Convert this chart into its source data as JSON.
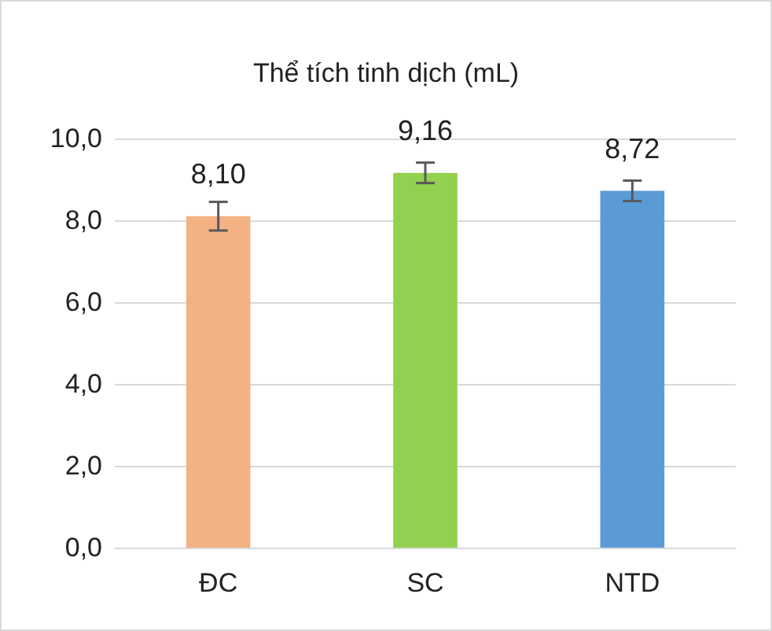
{
  "chart_data": {
    "type": "bar",
    "title": "Thể tích tinh dịch (mL)",
    "categories": [
      "ĐC",
      "SC",
      "NTD"
    ],
    "values": [
      8.1,
      9.16,
      8.72
    ],
    "colors": [
      "#f4b183",
      "#92d050",
      "#5b9bd5"
    ],
    "errors": [
      0.35,
      0.25,
      0.25
    ],
    "value_labels": [
      "8,10",
      "9,16",
      "8,72"
    ],
    "ylim": [
      0,
      10
    ],
    "yticks": [
      {
        "value": 0,
        "label": "0,0"
      },
      {
        "value": 2,
        "label": "2,0"
      },
      {
        "value": 4,
        "label": "4,0"
      },
      {
        "value": 6,
        "label": "6,0"
      },
      {
        "value": 8,
        "label": "8,0"
      },
      {
        "value": 10,
        "label": "10,0"
      }
    ],
    "grid": "y"
  }
}
